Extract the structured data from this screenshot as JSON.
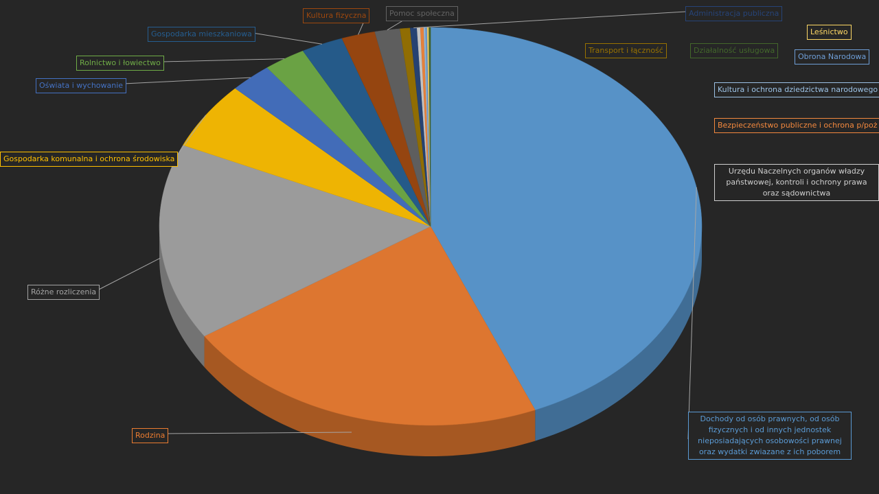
{
  "chart_data": {
    "type": "pie",
    "categories": [
      "Dochody od osób prawnych, od osób fizycznych i od innych jednostek nieposiadających osobowości prawnej oraz wydatki zwiazane z ich poborem",
      "Rodzina",
      "Różne rozliczenia",
      "Gospodarka komunalna i ochrona środowiska",
      "Oświata i wychowanie",
      "Rolnictwo i łowiectwo",
      "Gospodarka mieszkaniowa",
      "Kultura fizyczna",
      "Pomoc społeczna",
      "Transport i łączność",
      "Administracja publiczna",
      "Urzędu Naczelnych organów władzy państwowej, kontroli i ochrony prawa oraz sądownictwa",
      "Bezpieczeństwo  publiczne i ochrona p/poż",
      "Kultura i ochrona dziedzictwa narodowego",
      "Obrona Narodowa",
      "Leśnictwo",
      "Działalność usługowa"
    ],
    "values": [
      43.7,
      22,
      16,
      5.5,
      2.5,
      2.5,
      2.5,
      2,
      1.5,
      0.6,
      0.4,
      0.2,
      0.2,
      0.1,
      0.1,
      0.1,
      0.1
    ],
    "colors": [
      "#5b9bd5",
      "#ed7d31",
      "#a5a5a5",
      "#ffc000",
      "#4472c4",
      "#70ad47",
      "#255e91",
      "#9e480e",
      "#636363",
      "#997300",
      "#264478",
      "#d0d0d0",
      "#f4893e",
      "#9dc3e6",
      "#6f9fd8",
      "#ffd966",
      "#43682b"
    ]
  }
}
